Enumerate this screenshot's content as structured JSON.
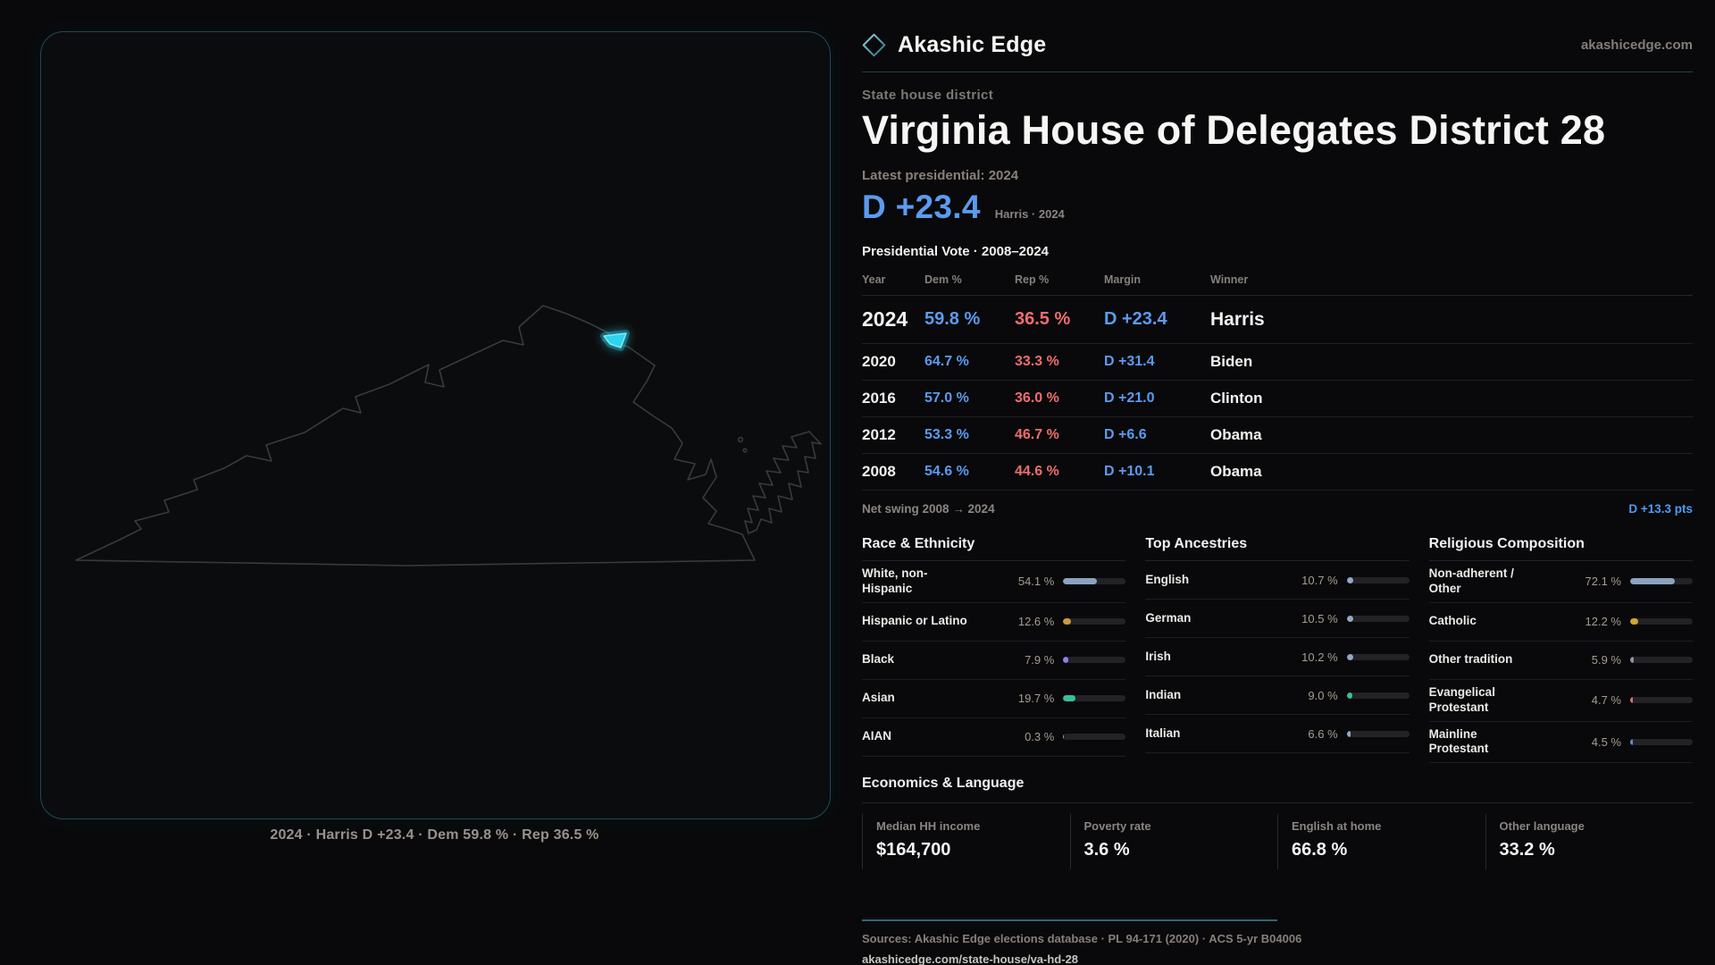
{
  "brand": {
    "name": "Akashic Edge",
    "domain": "akashicedge.com"
  },
  "page": {
    "kicker": "State house district",
    "title": "Virginia House of Delegates District 28",
    "latest_label": "Latest presidential: 2024",
    "headline_margin": "D +23.4",
    "headline_sub": "Harris · 2024"
  },
  "map": {
    "caption": "2024 · Harris D +23.4 · Dem 59.8 % · Rep 36.5 %",
    "district_color": "#2ed3ee",
    "outline_color": "#3a3a3e"
  },
  "table": {
    "title": "Presidential Vote · 2008–2024",
    "columns": [
      "Year",
      "Dem %",
      "Rep %",
      "Margin",
      "Winner"
    ],
    "rows": [
      {
        "year": "2024",
        "dem": "59.8 %",
        "rep": "36.5 %",
        "margin": "D +23.4",
        "winner": "Harris"
      },
      {
        "year": "2020",
        "dem": "64.7 %",
        "rep": "33.3 %",
        "margin": "D +31.4",
        "winner": "Biden"
      },
      {
        "year": "2016",
        "dem": "57.0 %",
        "rep": "36.0 %",
        "margin": "D +21.0",
        "winner": "Clinton"
      },
      {
        "year": "2012",
        "dem": "53.3 %",
        "rep": "46.7 %",
        "margin": "D +6.6",
        "winner": "Obama"
      },
      {
        "year": "2008",
        "dem": "54.6 %",
        "rep": "44.6 %",
        "margin": "D +10.1",
        "winner": "Obama"
      }
    ],
    "net_swing_label": "Net swing 2008 → 2024",
    "net_swing_value": "D +13.3 pts"
  },
  "sections": [
    {
      "title": "Race & Ethnicity",
      "rows": [
        {
          "label": "White, non-Hispanic",
          "value": "54.1 %",
          "pct": 54.1,
          "color": "#8ca3bf"
        },
        {
          "label": "Hispanic or Latino",
          "value": "12.6 %",
          "pct": 12.6,
          "color": "#d09a3e"
        },
        {
          "label": "Black",
          "value": "7.9 %",
          "pct": 7.9,
          "color": "#8d80ee"
        },
        {
          "label": "Asian",
          "value": "19.7 %",
          "pct": 19.7,
          "color": "#36bf9d"
        },
        {
          "label": "AIAN",
          "value": "0.3 %",
          "pct": 0.3,
          "color": "#8ca3bf"
        }
      ]
    },
    {
      "title": "Top Ancestries",
      "rows": [
        {
          "label": "English",
          "value": "10.7 %",
          "pct": 10.7,
          "color": "#93a9c6"
        },
        {
          "label": "German",
          "value": "10.5 %",
          "pct": 10.5,
          "color": "#93a9c6"
        },
        {
          "label": "Irish",
          "value": "10.2 %",
          "pct": 10.2,
          "color": "#93a9c6"
        },
        {
          "label": "Indian",
          "value": "9.0 %",
          "pct": 9.0,
          "color": "#3dbd8f"
        },
        {
          "label": "Italian",
          "value": "6.6 %",
          "pct": 6.6,
          "color": "#93a9c6"
        }
      ]
    },
    {
      "title": "Religious Composition",
      "rows": [
        {
          "label": "Non-adherent / Other",
          "value": "72.1 %",
          "pct": 72.1,
          "color": "#8ca3bf"
        },
        {
          "label": "Catholic",
          "value": "12.2 %",
          "pct": 12.2,
          "color": "#d0a437"
        },
        {
          "label": "Other tradition",
          "value": "5.9 %",
          "pct": 5.9,
          "color": "#8d939c"
        },
        {
          "label": "Evangelical Protestant",
          "value": "4.7 %",
          "pct": 4.7,
          "color": "#d87070"
        },
        {
          "label": "Mainline Protestant",
          "value": "4.5 %",
          "pct": 4.5,
          "color": "#5a8fd8"
        }
      ]
    }
  ],
  "economics": {
    "title": "Economics & Language",
    "stats": [
      {
        "label": "Median HH income",
        "value": "$164,700"
      },
      {
        "label": "Poverty rate",
        "value": "3.6 %"
      },
      {
        "label": "English at home",
        "value": "66.8 %"
      },
      {
        "label": "Other language",
        "value": "33.2 %"
      }
    ]
  },
  "footer": {
    "sources": "Sources: Akashic Edge elections database · PL 94-171 (2020) · ACS 5-yr B04006",
    "permalink": "akashicedge.com/state-house/va-hd-28"
  }
}
